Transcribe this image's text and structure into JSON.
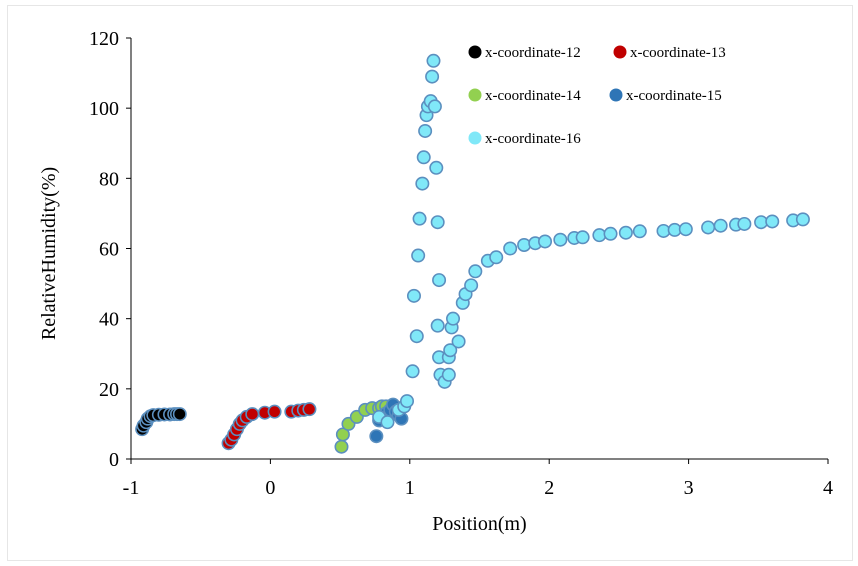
{
  "chart_data": {
    "type": "scatter",
    "xlabel": "Position(m)",
    "ylabel": "RelativeHumidity(%)",
    "xlim": [
      -1,
      4
    ],
    "ylim": [
      0,
      120
    ],
    "xticks": [
      -1,
      0,
      1,
      2,
      3,
      4
    ],
    "yticks": [
      0,
      20,
      40,
      60,
      80,
      100,
      120
    ],
    "grid": false,
    "legend_position": "top-center",
    "series": [
      {
        "name": "x-coordinate-12",
        "color": "#000000",
        "points": [
          [
            -0.92,
            8.5
          ],
          [
            -0.91,
            9.5
          ],
          [
            -0.89,
            10.5
          ],
          [
            -0.88,
            11.5
          ],
          [
            -0.86,
            12.2
          ],
          [
            -0.84,
            12.5
          ],
          [
            -0.8,
            12.6
          ],
          [
            -0.76,
            12.7
          ],
          [
            -0.72,
            12.7
          ],
          [
            -0.69,
            12.8
          ],
          [
            -0.67,
            12.8
          ],
          [
            -0.65,
            12.8
          ]
        ]
      },
      {
        "name": "x-coordinate-13",
        "color": "#c00000",
        "points": [
          [
            -0.3,
            4.5
          ],
          [
            -0.28,
            5.5
          ],
          [
            -0.26,
            7.0
          ],
          [
            -0.24,
            8.5
          ],
          [
            -0.22,
            10.0
          ],
          [
            -0.2,
            11.0
          ],
          [
            -0.17,
            12.0
          ],
          [
            -0.13,
            12.8
          ],
          [
            -0.04,
            13.2
          ],
          [
            0.03,
            13.5
          ],
          [
            0.15,
            13.5
          ],
          [
            0.2,
            13.8
          ],
          [
            0.24,
            14.0
          ],
          [
            0.28,
            14.2
          ]
        ]
      },
      {
        "name": "x-coordinate-14",
        "color": "#92d050",
        "points": [
          [
            0.51,
            3.5
          ],
          [
            0.52,
            7.0
          ],
          [
            0.56,
            10.0
          ],
          [
            0.62,
            12.0
          ],
          [
            0.68,
            14.0
          ],
          [
            0.73,
            14.5
          ],
          [
            0.78,
            14.5
          ],
          [
            0.8,
            15.0
          ],
          [
            0.83,
            15.0
          ]
        ]
      },
      {
        "name": "x-coordinate-15",
        "color": "#2e75b6",
        "points": [
          [
            0.76,
            6.5
          ],
          [
            0.78,
            11.0
          ],
          [
            0.83,
            13.0
          ],
          [
            0.86,
            14.0
          ],
          [
            0.88,
            15.5
          ],
          [
            0.9,
            13.5
          ],
          [
            0.92,
            12.5
          ],
          [
            0.94,
            11.5
          ]
        ]
      },
      {
        "name": "x-coordinate-16",
        "color": "#80e8f8",
        "points": [
          [
            0.78,
            12.0
          ],
          [
            0.84,
            10.5
          ],
          [
            0.92,
            14.0
          ],
          [
            0.96,
            15.0
          ],
          [
            0.98,
            16.5
          ],
          [
            1.02,
            25.0
          ],
          [
            1.03,
            46.5
          ],
          [
            1.05,
            35.0
          ],
          [
            1.06,
            58.0
          ],
          [
            1.07,
            68.5
          ],
          [
            1.09,
            78.5
          ],
          [
            1.1,
            86.0
          ],
          [
            1.11,
            93.5
          ],
          [
            1.12,
            98.0
          ],
          [
            1.13,
            100.5
          ],
          [
            1.15,
            102.0
          ],
          [
            1.16,
            109.0
          ],
          [
            1.17,
            113.5
          ],
          [
            1.18,
            100.5
          ],
          [
            1.19,
            83.0
          ],
          [
            1.2,
            67.5
          ],
          [
            1.21,
            51.0
          ],
          [
            1.2,
            38.0
          ],
          [
            1.21,
            29.0
          ],
          [
            1.22,
            24.0
          ],
          [
            1.25,
            22.0
          ],
          [
            1.28,
            24.0
          ],
          [
            1.28,
            29.0
          ],
          [
            1.29,
            31.0
          ],
          [
            1.3,
            37.5
          ],
          [
            1.31,
            40.0
          ],
          [
            1.35,
            33.5
          ],
          [
            1.38,
            44.5
          ],
          [
            1.4,
            47.0
          ],
          [
            1.44,
            49.5
          ],
          [
            1.47,
            53.5
          ],
          [
            1.56,
            56.5
          ],
          [
            1.62,
            57.5
          ],
          [
            1.72,
            60.0
          ],
          [
            1.82,
            61.0
          ],
          [
            1.9,
            61.5
          ],
          [
            1.97,
            62.0
          ],
          [
            2.08,
            62.5
          ],
          [
            2.18,
            63.0
          ],
          [
            2.24,
            63.2
          ],
          [
            2.36,
            63.8
          ],
          [
            2.44,
            64.2
          ],
          [
            2.55,
            64.5
          ],
          [
            2.65,
            64.9
          ],
          [
            2.82,
            65.0
          ],
          [
            2.9,
            65.3
          ],
          [
            2.98,
            65.5
          ],
          [
            3.14,
            66.0
          ],
          [
            3.23,
            66.5
          ],
          [
            3.34,
            66.8
          ],
          [
            3.4,
            67.0
          ],
          [
            3.52,
            67.5
          ],
          [
            3.6,
            67.7
          ],
          [
            3.75,
            68.0
          ],
          [
            3.82,
            68.3
          ]
        ]
      }
    ]
  }
}
